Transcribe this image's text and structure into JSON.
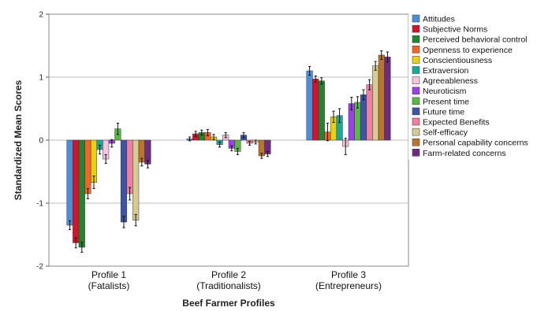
{
  "chart_data": {
    "type": "bar",
    "xlabel": "Beef Farmer Profiles",
    "ylabel": "Standardized Mean Scores",
    "ylim": [
      -2,
      2
    ],
    "yticks": [
      -2,
      -1,
      0,
      1,
      2
    ],
    "grid": true,
    "legend_position": "right",
    "categories": [
      {
        "line1": "Profile 1",
        "line2": "(Fatalists)"
      },
      {
        "line1": "Profile 2",
        "line2": "(Traditionalists)"
      },
      {
        "line1": "Profile 3",
        "line2": "(Entrepreneurs)"
      }
    ],
    "series": [
      {
        "name": "Attitudes",
        "color": "#4a90d9",
        "values": [
          -1.35,
          0.02,
          1.1
        ],
        "errors": [
          0.07,
          0.03,
          0.07
        ]
      },
      {
        "name": "Subjective Norms",
        "color": "#d8122c",
        "values": [
          -1.63,
          0.1,
          0.97
        ],
        "errors": [
          0.08,
          0.04,
          0.05
        ]
      },
      {
        "name": "Perceived behavioral control",
        "color": "#23852f",
        "values": [
          -1.7,
          0.12,
          0.94
        ],
        "errors": [
          0.08,
          0.04,
          0.05
        ]
      },
      {
        "name": "Openness to experience",
        "color": "#f2642a",
        "values": [
          -0.85,
          0.12,
          0.13
        ],
        "errors": [
          0.08,
          0.05,
          0.14
        ]
      },
      {
        "name": "Conscientiousness",
        "color": "#e8d20f",
        "values": [
          -0.67,
          0.05,
          0.37
        ],
        "errors": [
          0.1,
          0.04,
          0.09
        ]
      },
      {
        "name": "Extraversion",
        "color": "#1aa89a",
        "values": [
          -0.15,
          -0.07,
          0.39
        ],
        "errors": [
          0.07,
          0.04,
          0.11
        ]
      },
      {
        "name": "Agreeableness",
        "color": "#f6c4df",
        "values": [
          -0.3,
          0.08,
          -0.1
        ],
        "errors": [
          0.07,
          0.04,
          0.13
        ]
      },
      {
        "name": "Neuroticism",
        "color": "#9c40e8",
        "values": [
          -0.05,
          -0.13,
          0.58
        ],
        "errors": [
          0.06,
          0.04,
          0.1
        ]
      },
      {
        "name": "Present time",
        "color": "#5cb845",
        "values": [
          0.18,
          -0.18,
          0.6
        ],
        "errors": [
          0.09,
          0.05,
          0.09
        ]
      },
      {
        "name": "Future time",
        "color": "#3c55a8",
        "values": [
          -1.3,
          0.08,
          0.72
        ],
        "errors": [
          0.09,
          0.04,
          0.08
        ]
      },
      {
        "name": "Expected Benefits",
        "color": "#f27fa0",
        "values": [
          -0.85,
          -0.05,
          0.88
        ],
        "errors": [
          0.1,
          0.03,
          0.08
        ]
      },
      {
        "name": "Self-efficacy",
        "color": "#d6cb93",
        "values": [
          -1.27,
          -0.03,
          1.18
        ],
        "errors": [
          0.09,
          0.03,
          0.07
        ]
      },
      {
        "name": "Personal capability concerns",
        "color": "#b8772c",
        "values": [
          -0.35,
          -0.25,
          1.35
        ],
        "errors": [
          0.06,
          0.04,
          0.07
        ]
      },
      {
        "name": "Farm-related concerns",
        "color": "#6f2a82",
        "values": [
          -0.38,
          -0.22,
          1.32
        ],
        "errors": [
          0.06,
          0.04,
          0.08
        ]
      }
    ]
  }
}
